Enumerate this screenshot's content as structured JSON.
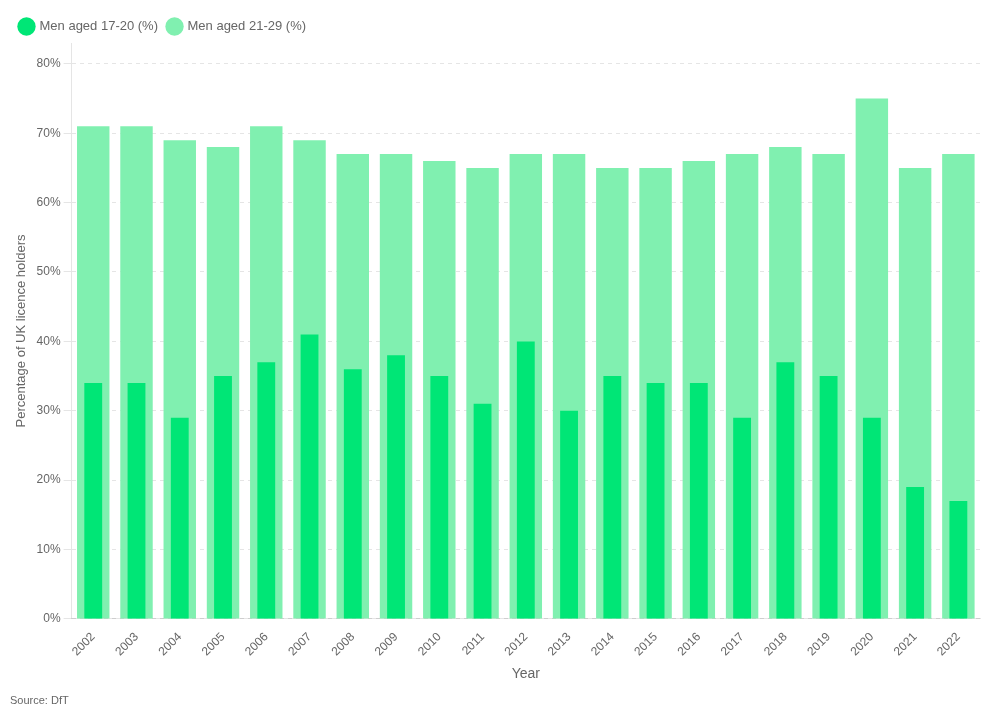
{
  "chart_data": {
    "type": "bar",
    "categories": [
      2002,
      2003,
      2004,
      2005,
      2006,
      2007,
      2008,
      2009,
      2010,
      2011,
      2012,
      2013,
      2014,
      2015,
      2016,
      2017,
      2018,
      2019,
      2020,
      2021,
      2022
    ],
    "series": [
      {
        "name": "Men aged 17-20 (%)",
        "color": "#00e676",
        "values": [
          34,
          34,
          29,
          35,
          37,
          41,
          36,
          38,
          35,
          31,
          40,
          30,
          35,
          34,
          34,
          29,
          37,
          35,
          29,
          19,
          17
        ]
      },
      {
        "name": "Men aged 21-29 (%)",
        "color": "#80f0b0",
        "values": [
          71,
          71,
          69,
          68,
          71,
          69,
          67,
          67,
          66,
          65,
          67,
          67,
          65,
          65,
          66,
          67,
          68,
          67,
          75,
          65,
          67
        ]
      }
    ],
    "x_label": "Year",
    "y_label": "Percentage of UK licence holders",
    "annotation": "Source: DfT",
    "ylim": [
      0,
      83
    ],
    "yticks": [
      {
        "value": 0,
        "label": "0%"
      },
      {
        "value": 10,
        "label": "10%"
      },
      {
        "value": 20,
        "label": "20%"
      },
      {
        "value": 30,
        "label": "30%"
      },
      {
        "value": 40,
        "label": "40%"
      },
      {
        "value": 50,
        "label": "50%"
      },
      {
        "value": 60,
        "label": "60%"
      },
      {
        "value": 70,
        "label": "70%"
      },
      {
        "value": 80,
        "label": "80%"
      }
    ],
    "grid": true,
    "legend": "upper left"
  }
}
